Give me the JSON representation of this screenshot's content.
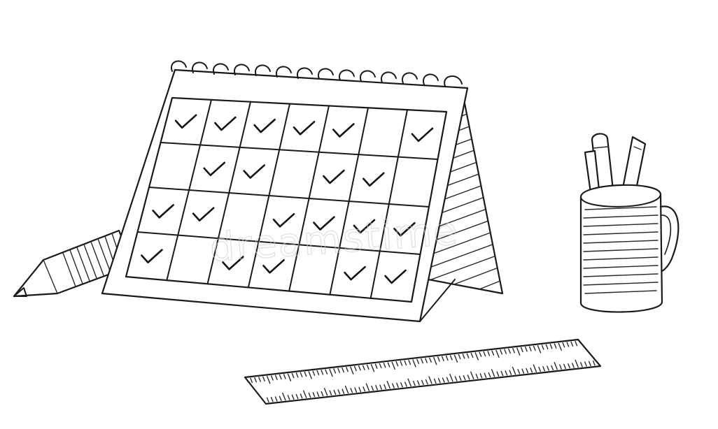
{
  "image": {
    "subject": "desk-calendar-sketch",
    "style": "black-and-white-line-drawing",
    "colors": {
      "background": "#ffffff",
      "ink": "#1a1a1a"
    }
  },
  "calendar": {
    "rows": 4,
    "columns": 7,
    "checked_cells": [
      [
        true,
        true,
        true,
        true,
        true,
        false,
        true
      ],
      [
        false,
        true,
        true,
        false,
        true,
        true,
        false
      ],
      [
        true,
        true,
        false,
        true,
        true,
        true,
        true
      ],
      [
        true,
        false,
        true,
        true,
        false,
        true,
        true
      ]
    ]
  },
  "watermark": {
    "text": "dreamstime"
  }
}
